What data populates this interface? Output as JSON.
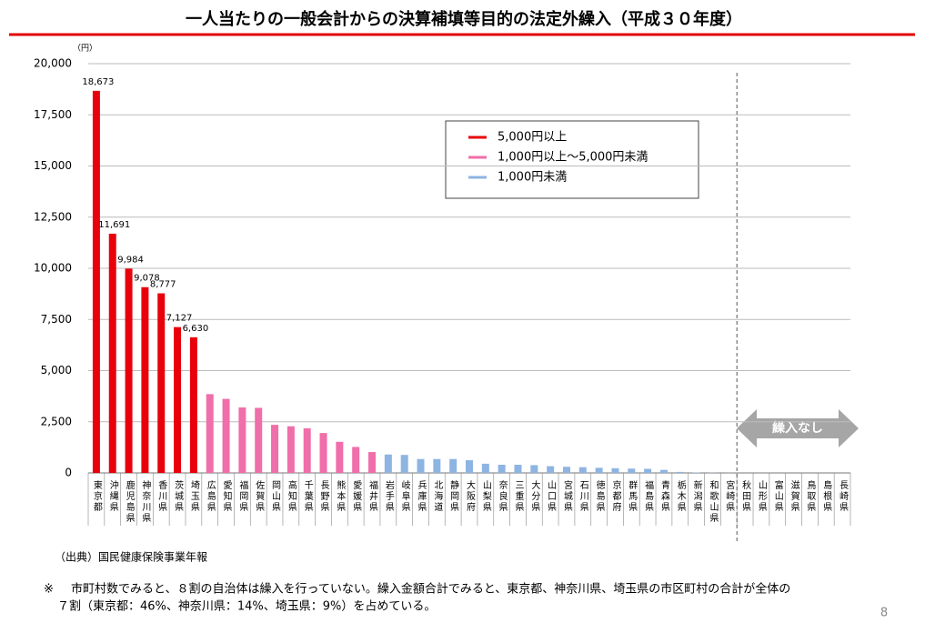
{
  "chart_data": {
    "type": "bar",
    "title": "一人当たりの一般会計からの決算補填等目的の法定外繰入（平成３０年度）",
    "unit_label": "（円）",
    "categories": [
      "東京都",
      "沖縄県",
      "鹿児島県",
      "神奈川県",
      "香川県",
      "茨城県",
      "埼玉県",
      "広島県",
      "愛知県",
      "福岡県",
      "佐賀県",
      "岡山県",
      "高知県",
      "千葉県",
      "長野県",
      "熊本県",
      "愛媛県",
      "福井県",
      "岩手県",
      "岐阜県",
      "兵庫県",
      "北海道",
      "静岡県",
      "大阪府",
      "山梨県",
      "奈良県",
      "三重県",
      "大分県",
      "山口県",
      "宮城県",
      "石川県",
      "徳島県",
      "京都府",
      "群馬県",
      "福島県",
      "青森県",
      "栃木県",
      "新潟県",
      "和歌山県",
      "宮崎県",
      "秋田県",
      "山形県",
      "富山県",
      "滋賀県",
      "鳥取県",
      "島根県",
      "長崎県"
    ],
    "series": [
      {
        "name": "5,000円以上",
        "color": "#e8000b",
        "values": [
          18673,
          11691,
          9984,
          9078,
          8777,
          7127,
          6630,
          null,
          null,
          null,
          null,
          null,
          null,
          null,
          null,
          null,
          null,
          null,
          null,
          null,
          null,
          null,
          null,
          null,
          null,
          null,
          null,
          null,
          null,
          null,
          null,
          null,
          null,
          null,
          null,
          null,
          null,
          null,
          null,
          null,
          null,
          null,
          null,
          null,
          null,
          null,
          null
        ],
        "value_labels": [
          "18,673",
          "11,691",
          "9,984",
          "9,078",
          "8,777",
          "7,127",
          "6,630",
          null,
          null,
          null,
          null,
          null,
          null,
          null,
          null,
          null,
          null,
          null,
          null,
          null,
          null,
          null,
          null,
          null,
          null,
          null,
          null,
          null,
          null,
          null,
          null,
          null,
          null,
          null,
          null,
          null,
          null,
          null,
          null,
          null,
          null,
          null,
          null,
          null,
          null,
          null,
          null
        ]
      },
      {
        "name": "1,000円以上～5,000円未満",
        "color": "#f06ea9",
        "values": [
          null,
          null,
          null,
          null,
          null,
          null,
          null,
          3850,
          3620,
          3200,
          3180,
          2350,
          2280,
          2180,
          1950,
          1520,
          1270,
          1020,
          null,
          null,
          null,
          null,
          null,
          null,
          null,
          null,
          null,
          null,
          null,
          null,
          null,
          null,
          null,
          null,
          null,
          null,
          null,
          null,
          null,
          null,
          null,
          null,
          null,
          null,
          null,
          null,
          null
        ]
      },
      {
        "name": "1,000円未満",
        "color": "#8db4e2",
        "values": [
          null,
          null,
          null,
          null,
          null,
          null,
          null,
          null,
          null,
          null,
          null,
          null,
          null,
          null,
          null,
          null,
          null,
          null,
          900,
          880,
          680,
          680,
          680,
          620,
          450,
          400,
          400,
          380,
          330,
          300,
          280,
          250,
          230,
          210,
          200,
          150,
          50,
          20,
          10,
          5,
          0,
          0,
          0,
          0,
          0,
          0,
          0
        ]
      }
    ],
    "ylim": [
      0,
      20000
    ],
    "yticks": [
      0,
      {
        "value": 2500,
        "label": "2,500"
      },
      {
        "value": 5000,
        "label": "5,000"
      },
      {
        "value": 7500,
        "label": "7,500"
      },
      {
        "value": 10000,
        "label": "10,000"
      },
      {
        "value": 12500,
        "label": "12,500"
      },
      {
        "value": 15000,
        "label": "15,000"
      },
      {
        "value": 17500,
        "label": "17,500"
      },
      {
        "value": 20000,
        "label": "20,000"
      }
    ],
    "grid": true,
    "annotation": "繰入なし",
    "source": "（出典）国民健康保険事業年報",
    "footnote_mark": "※",
    "footnote": [
      "市町村数でみると、８割の自治体は繰入を行っていない。繰入金額合計でみると、東京都、神奈川県、埼玉県の市区町村の合計が全体の",
      "７割（東京都：46%、神奈川県：14%、埼玉県：9%）を占めている。"
    ],
    "page_number": "8"
  }
}
